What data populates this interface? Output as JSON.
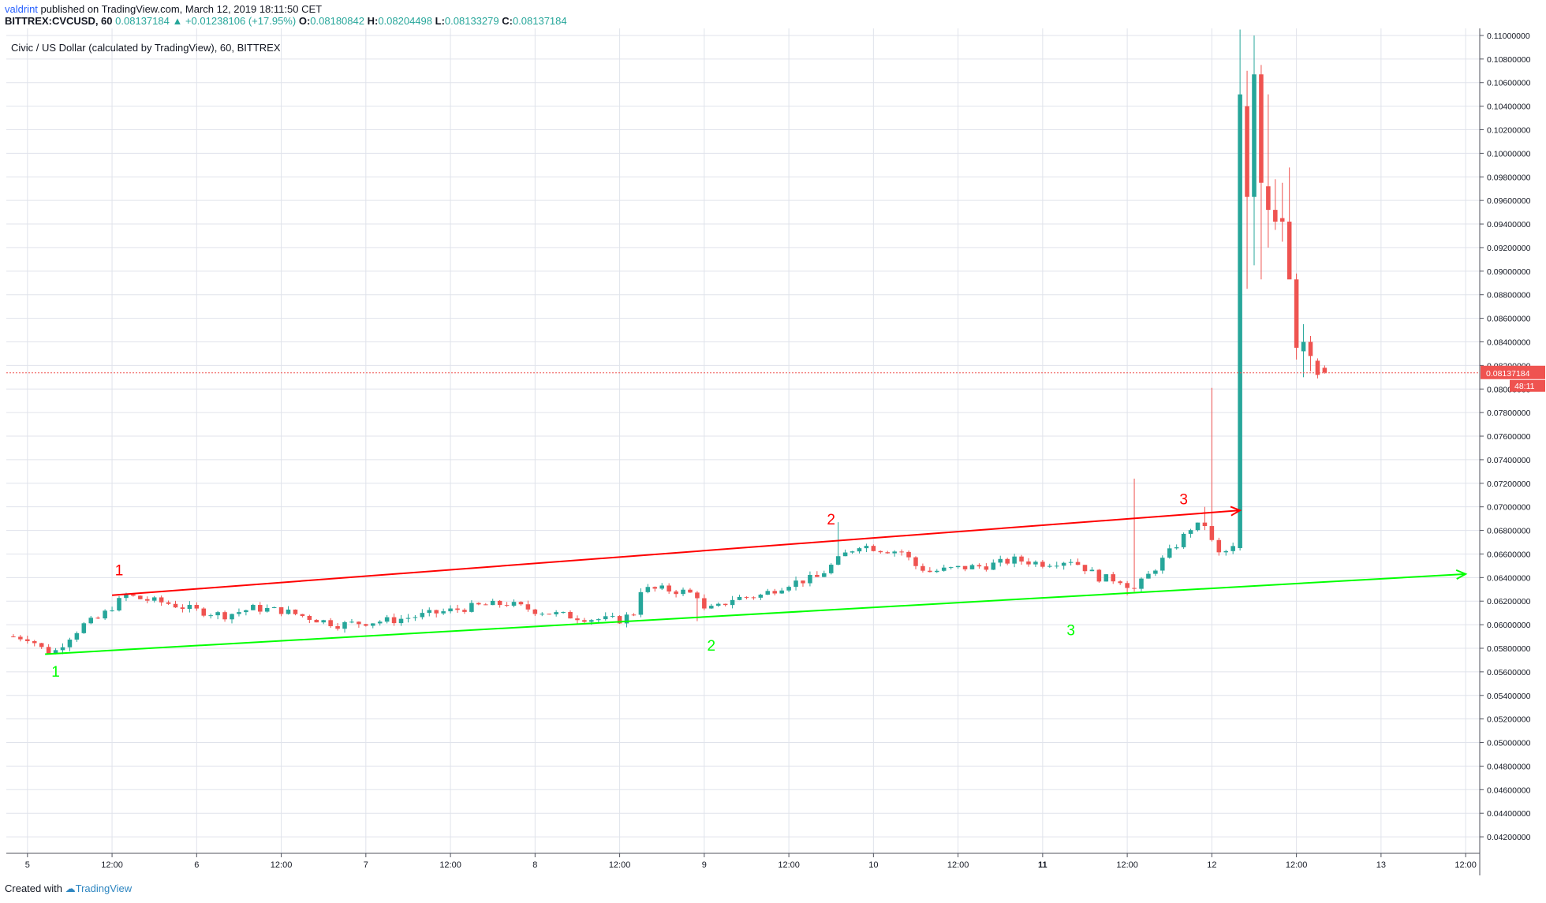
{
  "header": {
    "user": "valdrint",
    "published": "published on TradingView.com, March 12, 2019 18:11:50 CET",
    "symbol": "BITTREX:CVCUSD, 60",
    "last": "0.08137184",
    "change": "+0.01238106 (+17.95%)",
    "o_label": "O:",
    "o": "0.08180842",
    "h_label": "H:",
    "h": "0.08204498",
    "l_label": "L:",
    "l": "0.08133279",
    "c_label": "C:",
    "c": "0.08137184"
  },
  "legend_title": "Civic / US Dollar (calculated by TradingView), 60, BITTREX",
  "footer": {
    "created": "Created with",
    "brand": "TradingView"
  },
  "colors": {
    "up": "#26a69a",
    "down": "#ef5350",
    "resistance": "#ff0000",
    "support": "#00ff00",
    "price_line": "#ef5350",
    "grid": "#e0e3eb"
  },
  "chart_data": {
    "type": "candlestick",
    "title": "Civic / US Dollar (calculated by TradingView), 60, BITTREX",
    "ylim": [
      0.0406,
      0.1106
    ],
    "y_ticks": [
      "0.11000000",
      "0.10800000",
      "0.10600000",
      "0.10400000",
      "0.10200000",
      "0.10000000",
      "0.09800000",
      "0.09600000",
      "0.09400000",
      "0.09200000",
      "0.09000000",
      "0.08800000",
      "0.08600000",
      "0.08400000",
      "0.08200000",
      "0.08000000",
      "0.07800000",
      "0.07600000",
      "0.07400000",
      "0.07200000",
      "0.07000000",
      "0.06800000",
      "0.06600000",
      "0.06400000",
      "0.06200000",
      "0.06000000",
      "0.05800000",
      "0.05600000",
      "0.05400000",
      "0.05200000",
      "0.05000000",
      "0.04800000",
      "0.04600000",
      "0.04400000",
      "0.04200000"
    ],
    "x_ticks": [
      "5",
      "12:00",
      "6",
      "12:00",
      "7",
      "12:00",
      "8",
      "12:00",
      "9",
      "12:00",
      "10",
      "12:00",
      "11",
      "12:00",
      "12",
      "12:00",
      "13",
      "12:00"
    ],
    "x_tick_hours": [
      0,
      12,
      24,
      36,
      48,
      60,
      72,
      84,
      96,
      108,
      120,
      132,
      144,
      156,
      168,
      180,
      192,
      204
    ],
    "x_range_hours": [
      -3,
      206
    ],
    "current_price": "0.08137184",
    "countdown": "48:11",
    "anchors": [
      [
        -2.5,
        0.059
      ],
      [
        0,
        0.0589
      ],
      [
        1.5,
        0.0583
      ],
      [
        2.5,
        0.0577
      ],
      [
        4,
        0.0578
      ],
      [
        6,
        0.059
      ],
      [
        8,
        0.06
      ],
      [
        10,
        0.0605
      ],
      [
        12,
        0.0615
      ],
      [
        14,
        0.0625
      ],
      [
        16,
        0.0622
      ],
      [
        20,
        0.0618
      ],
      [
        24,
        0.0612
      ],
      [
        28,
        0.0608
      ],
      [
        32,
        0.0614
      ],
      [
        36,
        0.0612
      ],
      [
        40,
        0.0606
      ],
      [
        44,
        0.06
      ],
      [
        48,
        0.0602
      ],
      [
        52,
        0.0604
      ],
      [
        56,
        0.0608
      ],
      [
        60,
        0.0612
      ],
      [
        64,
        0.0616
      ],
      [
        68,
        0.0618
      ],
      [
        72,
        0.0612
      ],
      [
        76,
        0.0608
      ],
      [
        80,
        0.0605
      ],
      [
        84,
        0.0604
      ],
      [
        86,
        0.061
      ],
      [
        87,
        0.063
      ],
      [
        90,
        0.063
      ],
      [
        93,
        0.0628
      ],
      [
        95,
        0.0625
      ],
      [
        96,
        0.0612
      ],
      [
        98,
        0.0615
      ],
      [
        100,
        0.0622
      ],
      [
        104,
        0.0625
      ],
      [
        108,
        0.0635
      ],
      [
        112,
        0.064
      ],
      [
        114,
        0.065
      ],
      [
        116,
        0.066
      ],
      [
        118,
        0.0668
      ],
      [
        121,
        0.0664
      ],
      [
        124,
        0.0662
      ],
      [
        126,
        0.065
      ],
      [
        128,
        0.0645
      ],
      [
        132,
        0.0648
      ],
      [
        136,
        0.065
      ],
      [
        140,
        0.0655
      ],
      [
        144,
        0.0652
      ],
      [
        148,
        0.0655
      ],
      [
        150,
        0.0648
      ],
      [
        152,
        0.064
      ],
      [
        155,
        0.0638
      ],
      [
        157,
        0.063
      ],
      [
        159,
        0.0642
      ],
      [
        161,
        0.0655
      ],
      [
        163,
        0.0668
      ],
      [
        165,
        0.0682
      ],
      [
        167,
        0.0685
      ],
      [
        168,
        0.067
      ],
      [
        169,
        0.066
      ],
      [
        170,
        0.0662
      ],
      [
        171,
        0.0665
      ]
    ],
    "spike_candles": [
      {
        "t": 172,
        "o": 0.0665,
        "h": 0.1105,
        "l": 0.0663,
        "c": 0.105
      },
      {
        "t": 173,
        "o": 0.104,
        "h": 0.107,
        "l": 0.0885,
        "c": 0.0963
      },
      {
        "t": 174,
        "o": 0.0963,
        "h": 0.11,
        "l": 0.0905,
        "c": 0.1067
      },
      {
        "t": 175,
        "o": 0.1067,
        "h": 0.1075,
        "l": 0.0893,
        "c": 0.0975
      },
      {
        "t": 176,
        "o": 0.0972,
        "h": 0.105,
        "l": 0.092,
        "c": 0.0952
      },
      {
        "t": 177,
        "o": 0.0952,
        "h": 0.0978,
        "l": 0.0935,
        "c": 0.0942
      },
      {
        "t": 178,
        "o": 0.0945,
        "h": 0.0975,
        "l": 0.0925,
        "c": 0.0942
      },
      {
        "t": 179,
        "o": 0.0942,
        "h": 0.0988,
        "l": 0.0895,
        "c": 0.0893
      },
      {
        "t": 180,
        "o": 0.0893,
        "h": 0.0898,
        "l": 0.0825,
        "c": 0.0835
      },
      {
        "t": 181,
        "o": 0.0832,
        "h": 0.0855,
        "l": 0.081,
        "c": 0.084
      },
      {
        "t": 182,
        "o": 0.084,
        "h": 0.0845,
        "l": 0.0815,
        "c": 0.0828
      },
      {
        "t": 183,
        "o": 0.0824,
        "h": 0.0826,
        "l": 0.0809,
        "c": 0.0812
      },
      {
        "t": 184,
        "o": 0.0818,
        "h": 0.082,
        "l": 0.0813,
        "c": 0.0814
      }
    ],
    "annotations": {
      "resistance_line": {
        "from": [
          12,
          0.0625
        ],
        "to": [
          172,
          0.0697
        ],
        "arrow": true
      },
      "support_line": {
        "from": [
          2.5,
          0.0575
        ],
        "to": [
          204,
          0.0643
        ],
        "arrow": true
      },
      "resistance_labels": [
        {
          "text": "1",
          "t": 13,
          "y": 0.0642
        },
        {
          "text": "2",
          "t": 114,
          "y": 0.0685
        },
        {
          "text": "3",
          "t": 164,
          "y": 0.0702
        }
      ],
      "support_labels": [
        {
          "text": "1",
          "t": 4,
          "y": 0.0556
        },
        {
          "text": "2",
          "t": 97,
          "y": 0.0578
        },
        {
          "text": "3",
          "t": 148,
          "y": 0.0591
        }
      ]
    }
  }
}
